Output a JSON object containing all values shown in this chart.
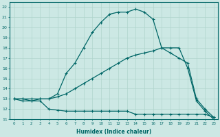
{
  "xlabel": "Humidex (Indice chaleur)",
  "xlim": [
    -0.5,
    23.5
  ],
  "ylim": [
    11,
    22.5
  ],
  "xticks": [
    0,
    1,
    2,
    3,
    4,
    5,
    6,
    7,
    8,
    9,
    10,
    11,
    12,
    13,
    14,
    15,
    16,
    17,
    18,
    19,
    20,
    21,
    22,
    23
  ],
  "yticks": [
    11,
    12,
    13,
    14,
    15,
    16,
    17,
    18,
    19,
    20,
    21,
    22
  ],
  "bg_color": "#cce8e4",
  "line_color": "#006666",
  "grid_color": "#b0d4cc",
  "line1_x": [
    0,
    1,
    2,
    3,
    4,
    5,
    6,
    7,
    8,
    9,
    10,
    11,
    12,
    13,
    14,
    15,
    16,
    17,
    18,
    19,
    20,
    21,
    22,
    23
  ],
  "line1_y": [
    13,
    12.8,
    12.8,
    12.8,
    12.0,
    11.9,
    11.8,
    11.8,
    11.8,
    11.8,
    11.8,
    11.8,
    11.8,
    11.8,
    11.5,
    11.5,
    11.5,
    11.5,
    11.5,
    11.5,
    11.5,
    11.5,
    11.5,
    11.2
  ],
  "line2_x": [
    0,
    1,
    2,
    3,
    4,
    5,
    6,
    7,
    8,
    9,
    10,
    11,
    12,
    13,
    14,
    15,
    16,
    17,
    18,
    19,
    20,
    21,
    22,
    23
  ],
  "line2_y": [
    13,
    13,
    13,
    13,
    13,
    13.2,
    13.5,
    14.0,
    14.5,
    15.0,
    15.5,
    16.0,
    16.5,
    17.0,
    17.3,
    17.5,
    17.7,
    18.0,
    18.0,
    18.0,
    16.0,
    12.8,
    11.8,
    11.0
  ],
  "line3_x": [
    0,
    1,
    2,
    3,
    4,
    5,
    6,
    7,
    8,
    9,
    10,
    11,
    12,
    13,
    14,
    15,
    16,
    17,
    18,
    19,
    20,
    21,
    22,
    23
  ],
  "line3_y": [
    13,
    13,
    12.8,
    13.0,
    13.0,
    13.5,
    15.5,
    16.5,
    18.0,
    19.5,
    20.5,
    21.3,
    21.5,
    21.5,
    21.8,
    21.5,
    20.8,
    18.0,
    17.5,
    17.0,
    16.5,
    13.0,
    12.0,
    11.2
  ],
  "marker": "+"
}
